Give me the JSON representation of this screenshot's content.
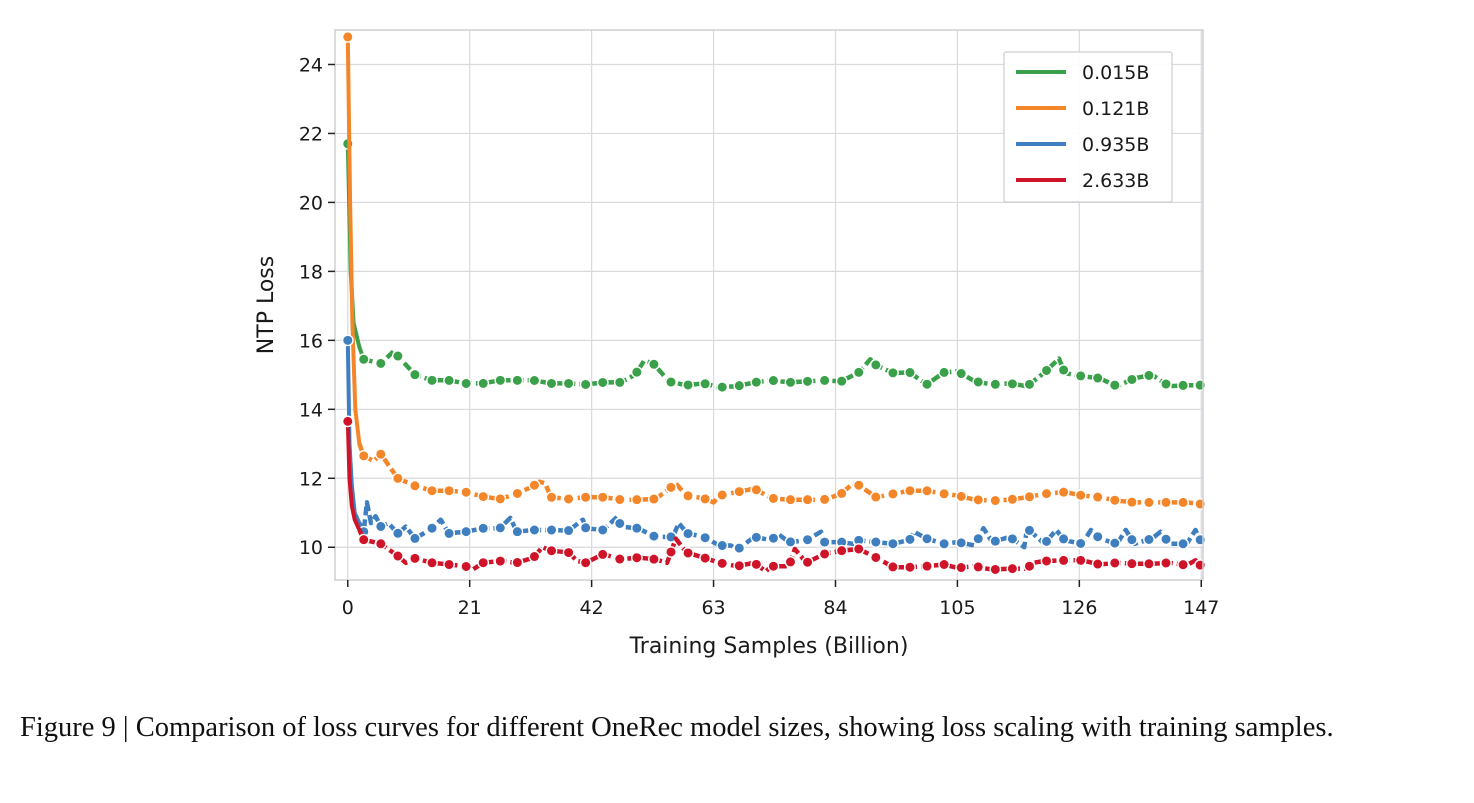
{
  "caption": "Figure 9 | Comparison of loss curves for different OneRec model sizes, showing loss scaling with training samples.",
  "chart_data": {
    "type": "line",
    "title": "",
    "xlabel": "Training Samples (Billion)",
    "ylabel": "NTP Loss",
    "xlim": [
      -2.2,
      147.3
    ],
    "ylim": [
      9.05,
      25.0
    ],
    "xticks": [
      0,
      21,
      42,
      63,
      84,
      105,
      126,
      147
    ],
    "yticks": [
      10,
      12,
      14,
      16,
      18,
      20,
      22,
      24
    ],
    "grid": true,
    "legend_position": "top-right",
    "series": [
      {
        "name": "0.015B",
        "color": "#3aa04a",
        "x": [
          0,
          0.5,
          1,
          2,
          2.75,
          5.7,
          8,
          8.6,
          11.6,
          14.5,
          17.4,
          20.3,
          23.3,
          26.2,
          29.1,
          32,
          35,
          38,
          41,
          44,
          47,
          49.5,
          51,
          52.5,
          55.4,
          58.3,
          61.3,
          64,
          67,
          70,
          73,
          76,
          79,
          82,
          85,
          88,
          90,
          91,
          94,
          96.8,
          99.7,
          102.7,
          105,
          108,
          111,
          114,
          117,
          120,
          122.5,
          123.5,
          126.5,
          129.5,
          132.5,
          135.5,
          138.5,
          141.5,
          144.5,
          147
        ],
        "y": [
          21.7,
          18.0,
          16.5,
          15.8,
          15.45,
          15.33,
          15.7,
          15.55,
          15.0,
          14.84,
          14.84,
          14.75,
          14.75,
          14.84,
          14.84,
          14.84,
          14.75,
          14.75,
          14.72,
          14.78,
          14.78,
          15.0,
          15.4,
          15.35,
          14.8,
          14.7,
          14.75,
          14.64,
          14.67,
          14.78,
          14.84,
          14.78,
          14.81,
          14.84,
          14.81,
          15.07,
          15.45,
          15.28,
          15.05,
          15.07,
          14.72,
          15.07,
          15.1,
          14.81,
          14.72,
          14.75,
          14.67,
          15.07,
          15.47,
          15.05,
          14.96,
          14.9,
          14.67,
          14.9,
          15.0,
          14.67,
          14.7,
          14.7
        ]
      },
      {
        "name": "0.121B",
        "color": "#f4862a",
        "x": [
          0,
          0.4,
          0.8,
          1.3,
          2,
          2.75,
          4.5,
          5.7,
          8.6,
          11.6,
          14.5,
          17.4,
          20.3,
          23.3,
          26.2,
          29.1,
          32,
          33,
          34,
          35,
          38,
          41,
          44,
          47,
          50,
          53,
          55.4,
          56.5,
          58.3,
          61.3,
          63,
          64,
          67,
          70,
          73,
          76,
          79,
          82,
          85,
          87,
          88,
          91,
          94,
          96.8,
          99.7,
          102.7,
          105,
          108,
          111,
          114,
          117,
          120,
          123.5,
          126.5,
          129.5,
          132.5,
          135.5,
          138.5,
          141.5,
          144.5,
          147
        ],
        "y": [
          24.8,
          20.0,
          16.5,
          14.0,
          13.0,
          12.65,
          12.5,
          12.7,
          12.0,
          11.78,
          11.64,
          11.64,
          11.6,
          11.47,
          11.4,
          11.55,
          11.78,
          11.9,
          11.85,
          11.45,
          11.4,
          11.45,
          11.45,
          11.38,
          11.38,
          11.4,
          11.7,
          11.85,
          11.5,
          11.42,
          11.3,
          11.5,
          11.6,
          11.7,
          11.42,
          11.38,
          11.38,
          11.38,
          11.55,
          11.85,
          11.8,
          11.45,
          11.55,
          11.64,
          11.64,
          11.55,
          11.5,
          11.38,
          11.35,
          11.38,
          11.45,
          11.55,
          11.6,
          11.5,
          11.45,
          11.35,
          11.3,
          11.3,
          11.3,
          11.3,
          11.25
        ]
      },
      {
        "name": "0.935B",
        "color": "#3f7fbf",
        "x": [
          0,
          0.3,
          0.7,
          1.2,
          2,
          2.75,
          3.3,
          4,
          4.8,
          5.7,
          7,
          8.6,
          10,
          11.6,
          14.5,
          16,
          17.4,
          20.3,
          23.3,
          26.2,
          28,
          29.1,
          32,
          35,
          38,
          40.5,
          41,
          44,
          46.5,
          47,
          50,
          53,
          56,
          57,
          58.5,
          61.3,
          64,
          66,
          67,
          70,
          73,
          74,
          76,
          79,
          81.5,
          82,
          85,
          87,
          88,
          91,
          94,
          96.8,
          97.5,
          99.7,
          102.7,
          105,
          108,
          109.5,
          111,
          114,
          116.5,
          117,
          120,
          122,
          123.5,
          126.5,
          128,
          129.5,
          132.5,
          134,
          135.5,
          138.5,
          140,
          141.5,
          144.5,
          146,
          147
        ],
        "y": [
          16.0,
          13.0,
          11.8,
          11.0,
          10.7,
          10.45,
          11.3,
          10.7,
          10.9,
          10.6,
          10.7,
          10.4,
          10.6,
          10.25,
          10.55,
          10.8,
          10.4,
          10.45,
          10.55,
          10.55,
          10.85,
          10.45,
          10.5,
          10.5,
          10.48,
          10.8,
          10.55,
          10.5,
          10.9,
          10.6,
          10.55,
          10.3,
          10.3,
          10.7,
          10.4,
          10.3,
          10.05,
          10.05,
          9.92,
          10.3,
          10.2,
          10.4,
          10.15,
          10.2,
          10.45,
          10.15,
          10.15,
          10.1,
          10.2,
          10.15,
          10.1,
          10.22,
          10.45,
          10.25,
          10.1,
          10.15,
          10.05,
          10.55,
          10.15,
          10.3,
          10.0,
          10.55,
          10.1,
          10.5,
          10.2,
          10.1,
          10.5,
          10.25,
          10.1,
          10.5,
          10.1,
          10.25,
          10.45,
          10.1,
          10.1,
          10.5,
          10.15
        ]
      },
      {
        "name": "2.633B",
        "color": "#cf1429",
        "x": [
          0,
          0.3,
          0.7,
          1.2,
          2,
          2.75,
          5.7,
          8.6,
          10,
          11.6,
          14.5,
          17.4,
          20.3,
          21.5,
          23.3,
          26.2,
          29.1,
          32,
          33.5,
          35,
          38,
          39.5,
          41,
          44,
          47,
          50,
          53,
          55,
          56.5,
          58.3,
          61.3,
          64,
          67,
          70,
          72,
          73,
          76,
          77,
          79,
          82,
          85,
          88,
          91,
          94,
          96.8,
          99.7,
          102.7,
          105,
          108,
          111,
          114,
          117,
          118,
          120,
          123.5,
          126.5,
          129.5,
          132.5,
          135.5,
          138.5,
          141.5,
          144.5,
          146,
          147
        ],
        "y": [
          13.65,
          12.0,
          11.2,
          10.8,
          10.5,
          10.22,
          10.1,
          9.75,
          9.55,
          9.68,
          9.55,
          9.5,
          9.45,
          9.35,
          9.55,
          9.6,
          9.55,
          9.7,
          10.0,
          9.9,
          9.85,
          9.6,
          9.55,
          9.8,
          9.65,
          9.7,
          9.65,
          9.55,
          10.25,
          9.85,
          9.7,
          9.55,
          9.45,
          9.55,
          9.3,
          9.45,
          9.45,
          9.95,
          9.55,
          9.8,
          9.9,
          9.95,
          9.7,
          9.42,
          9.42,
          9.45,
          9.5,
          9.4,
          9.45,
          9.35,
          9.38,
          9.38,
          9.55,
          9.6,
          9.62,
          9.62,
          9.5,
          9.55,
          9.52,
          9.52,
          9.55,
          9.48,
          9.62,
          9.45
        ]
      }
    ],
    "marker_series_note": "circle markers with white edge on each line"
  }
}
